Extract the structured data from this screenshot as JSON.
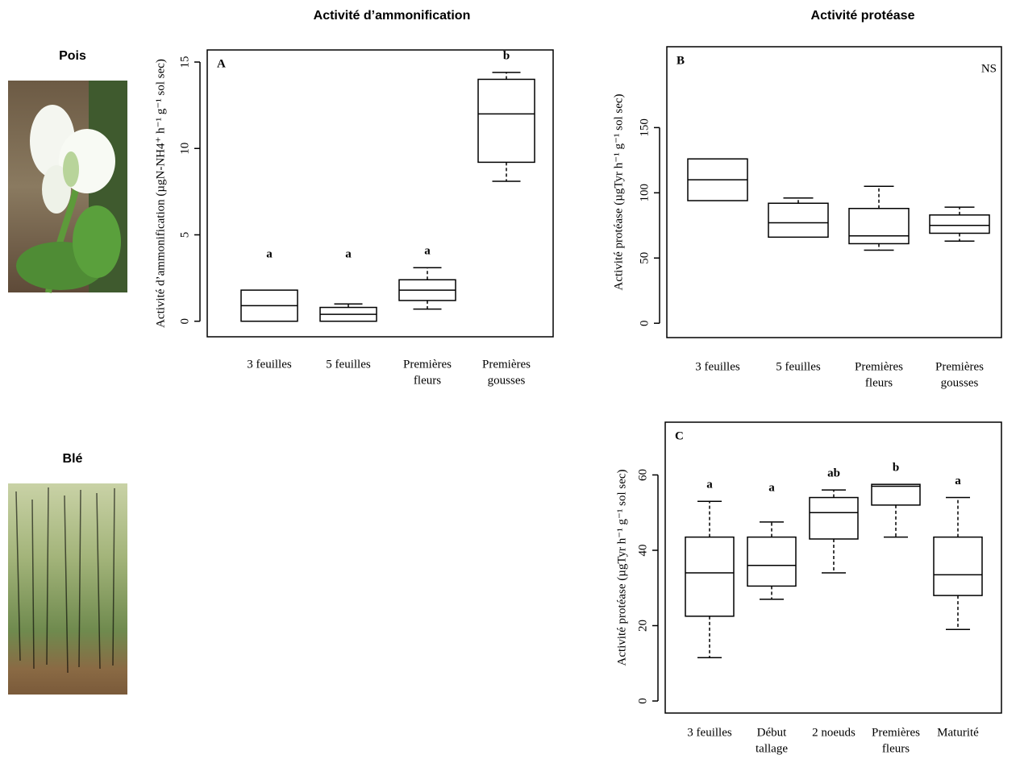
{
  "row_labels": [
    "Pois",
    "Blé"
  ],
  "chart_data": [
    {
      "type": "boxplot",
      "title": "Activité d’ammonification",
      "panel": "A",
      "y_label": "Activité d’ammonification (µgN-NH4⁺ h⁻¹ g⁻¹ sol sec)",
      "categories": [
        [
          "3 feuilles"
        ],
        [
          "5 feuilles"
        ],
        [
          "Premières",
          "fleurs"
        ],
        [
          "Premières",
          "gousses"
        ]
      ],
      "boxes": [
        {
          "min": 0,
          "q1": 0,
          "median": 0.9,
          "q3": 1.8,
          "max": 1.8
        },
        {
          "min": 0,
          "q1": 0,
          "median": 0.4,
          "q3": 0.8,
          "max": 1.0
        },
        {
          "min": 0.7,
          "q1": 1.2,
          "median": 1.8,
          "q3": 2.4,
          "max": 3.1
        },
        {
          "min": 8.1,
          "q1": 9.2,
          "median": 12.0,
          "q3": 14.0,
          "max": 14.4
        }
      ],
      "letters": [
        "a",
        "a",
        "a",
        "b"
      ],
      "ylim": [
        -0.9,
        15.7
      ],
      "yticks": [
        0,
        5,
        10,
        15
      ]
    },
    {
      "type": "boxplot",
      "title": "Activité protéase",
      "panel": "B",
      "annotation": "NS",
      "y_label": "Activité protéase (µgTyr h⁻¹ g⁻¹ sol sec)",
      "categories": [
        [
          "3 feuilles"
        ],
        [
          "5 feuilles"
        ],
        [
          "Premières",
          "fleurs"
        ],
        [
          "Premières",
          "gousses"
        ]
      ],
      "boxes": [
        {
          "min": 94,
          "q1": 94,
          "median": 110,
          "q3": 126,
          "max": 126
        },
        {
          "min": 66,
          "q1": 66,
          "median": 77,
          "q3": 92,
          "max": 96
        },
        {
          "min": 56,
          "q1": 61,
          "median": 67,
          "q3": 88,
          "max": 105
        },
        {
          "min": 63,
          "q1": 69,
          "median": 75,
          "q3": 83,
          "max": 89
        }
      ],
      "ylim": [
        -11,
        212
      ],
      "yticks": [
        0,
        50,
        100,
        150
      ]
    },
    {
      "type": "boxplot",
      "panel": "C",
      "y_label": "Activité protéase (µgTyr h⁻¹ g⁻¹ sol sec)",
      "categories": [
        [
          "3 feuilles"
        ],
        [
          "Début",
          "tallage"
        ],
        [
          "2 noeuds"
        ],
        [
          "Premières",
          "fleurs"
        ],
        [
          "Maturité"
        ]
      ],
      "boxes": [
        {
          "min": 11.5,
          "q1": 22.5,
          "median": 34,
          "q3": 43.5,
          "max": 53
        },
        {
          "min": 27,
          "q1": 30.5,
          "median": 36,
          "q3": 43.5,
          "max": 47.5
        },
        {
          "min": 34,
          "q1": 43,
          "median": 50,
          "q3": 54,
          "max": 56
        },
        {
          "min": 43.5,
          "q1": 52,
          "median": 57,
          "q3": 57.5,
          "max": 57.5
        },
        {
          "min": 19,
          "q1": 28,
          "median": 33.5,
          "q3": 43.5,
          "max": 54
        }
      ],
      "letters": [
        "a",
        "a",
        "ab",
        "b",
        "a"
      ],
      "ylim": [
        -3.2,
        74
      ],
      "yticks": [
        0,
        20,
        40,
        60
      ]
    }
  ]
}
